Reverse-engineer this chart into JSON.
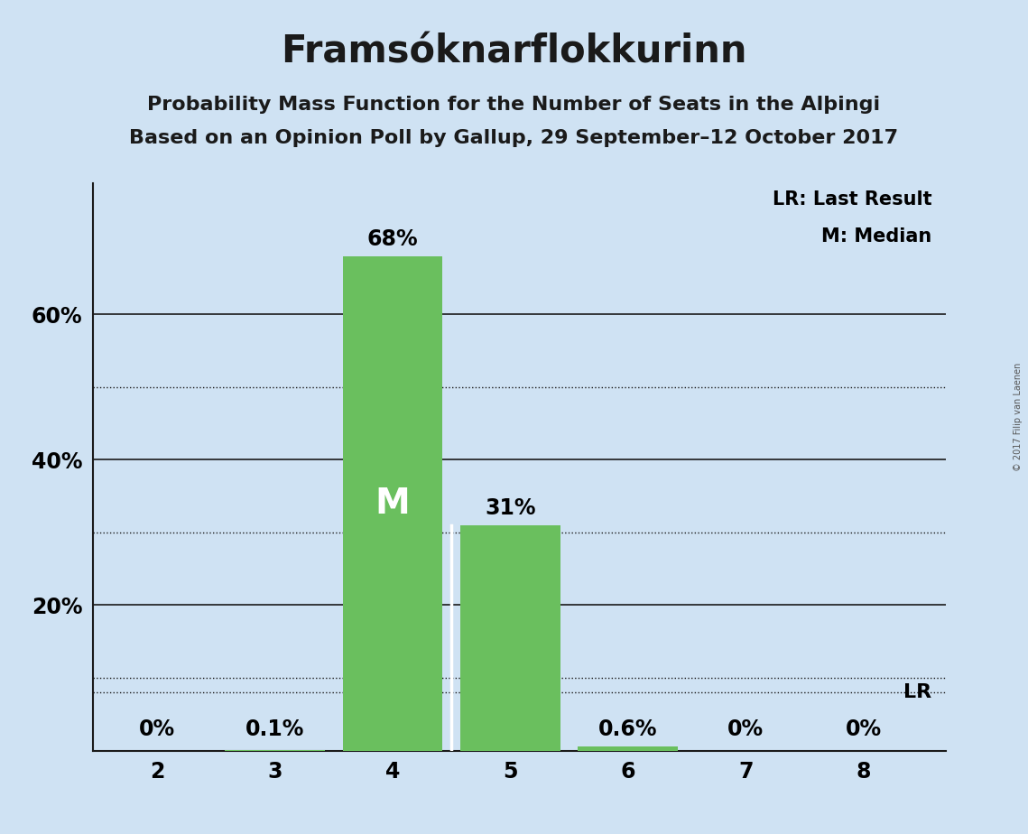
{
  "title": "Framsóknarflokkurinn",
  "subtitle1": "Probability Mass Function for the Number of Seats in the Alþingi",
  "subtitle2": "Based on an Opinion Poll by Gallup, 29 September–12 October 2017",
  "copyright": "© 2017 Filip van Laenen",
  "categories": [
    2,
    3,
    4,
    5,
    6,
    7,
    8
  ],
  "values": [
    0.0,
    0.001,
    0.68,
    0.31,
    0.006,
    0.0,
    0.0
  ],
  "bar_labels": [
    "0%",
    "0.1%",
    "68%",
    "31%",
    "0.6%",
    "0%",
    "0%"
  ],
  "bar_color": "#6abf5e",
  "background_color": "#cfe2f3",
  "median_seat": 4,
  "median_label": "M",
  "lr_value": 0.08,
  "lr_label": "LR",
  "legend_lr": "LR: Last Result",
  "legend_m": "M: Median",
  "ylim": [
    0,
    0.78
  ],
  "solid_gridlines": [
    0.2,
    0.4,
    0.6
  ],
  "dotted_gridlines": [
    0.1,
    0.3,
    0.5
  ],
  "ytick_positions": [
    0.2,
    0.4,
    0.6
  ],
  "ytick_labels": [
    "20%",
    "40%",
    "60%"
  ],
  "title_fontsize": 30,
  "subtitle_fontsize": 16,
  "bar_label_fontsize": 17,
  "axis_label_fontsize": 17,
  "legend_fontsize": 15,
  "median_fontsize": 28,
  "lr_fontsize": 16
}
